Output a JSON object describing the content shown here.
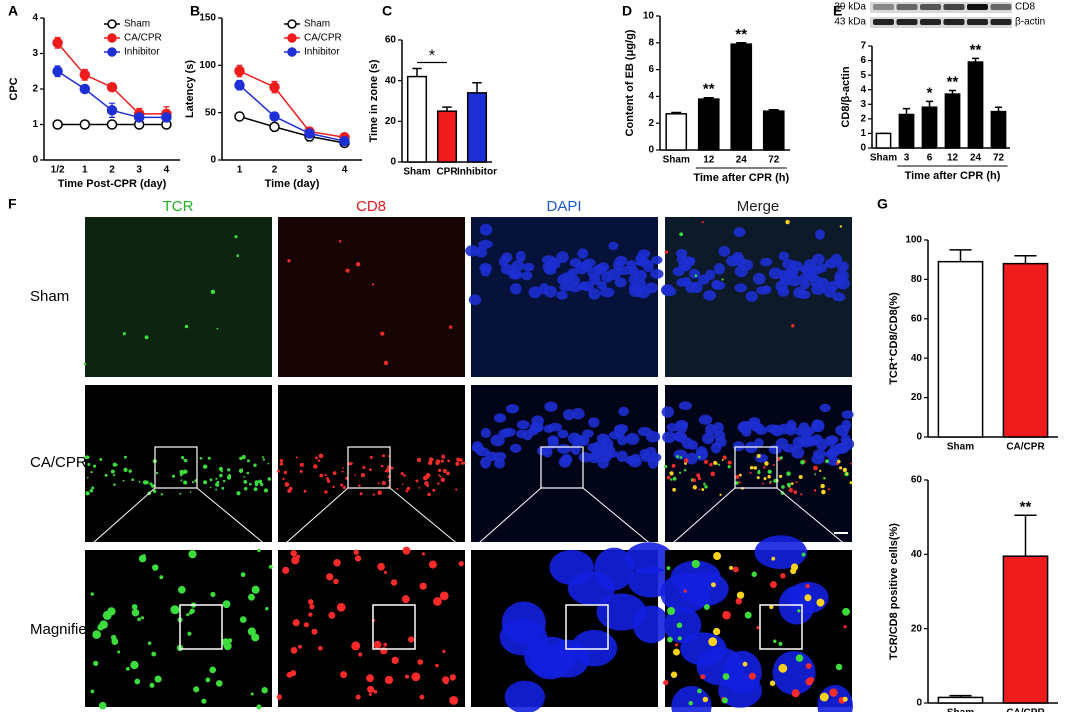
{
  "panel_labels": [
    "A",
    "B",
    "C",
    "D",
    "E",
    "F",
    "G"
  ],
  "chart_data": [
    {
      "type": "line",
      "ylabel": "CPC",
      "xlabel": "Time Post-CPR (day)",
      "categories": [
        "1/2",
        "1",
        "2",
        "3",
        "4"
      ],
      "ylim": [
        0,
        4
      ],
      "yticks": [
        0,
        1,
        2,
        3,
        4
      ],
      "series": [
        {
          "name": "Sham",
          "color": "#000000",
          "filled": false,
          "values": [
            1,
            1,
            1,
            1,
            1
          ],
          "errors": [
            0.03,
            0.03,
            0.03,
            0.03,
            0.03
          ]
        },
        {
          "name": "CA/CPR",
          "color": "#ee1c1c",
          "filled": true,
          "values": [
            3.3,
            2.4,
            2.05,
            1.3,
            1.3
          ],
          "errors": [
            0.15,
            0.15,
            0.1,
            0.15,
            0.2
          ]
        },
        {
          "name": "Inhibitor",
          "color": "#1f2fd6",
          "filled": true,
          "values": [
            2.5,
            2.0,
            1.4,
            1.2,
            1.2
          ],
          "errors": [
            0.15,
            0.05,
            0.2,
            0.1,
            0.1
          ]
        }
      ]
    },
    {
      "type": "line",
      "ylabel": "Latency (s)",
      "xlabel": "Time (day)",
      "categories": [
        "1",
        "2",
        "3",
        "4"
      ],
      "ylim": [
        0,
        150
      ],
      "yticks": [
        0,
        50,
        100,
        150
      ],
      "series": [
        {
          "name": "Sham",
          "color": "#000000",
          "filled": false,
          "values": [
            46,
            35,
            25,
            18
          ],
          "errors": [
            2,
            2,
            5,
            3
          ]
        },
        {
          "name": "CA/CPR",
          "color": "#ee1c1c",
          "filled": true,
          "values": [
            94,
            77,
            30,
            24
          ],
          "errors": [
            6,
            6,
            4,
            4
          ]
        },
        {
          "name": "Inhibitor",
          "color": "#1f2fd6",
          "filled": true,
          "values": [
            79,
            46,
            28,
            20
          ],
          "errors": [
            5,
            4,
            3,
            3
          ]
        }
      ]
    },
    {
      "type": "bar",
      "ylabel": "Time in zone (s)",
      "categories": [
        "Sham",
        "CPR",
        "Inhibitor"
      ],
      "values": [
        42,
        25,
        34
      ],
      "errors": [
        4,
        2,
        5
      ],
      "colors": [
        "#ffffff",
        "#ee1c1c",
        "#1f2fd6"
      ],
      "ylim": [
        0,
        60
      ],
      "yticks": [
        0,
        20,
        40,
        60
      ],
      "comparison_label": "*"
    },
    {
      "type": "bar",
      "ylabel": "Content of EB (μg/g)",
      "xlabel": "Time after CPR (h)",
      "categories": [
        "Sham",
        "12",
        "24",
        "72"
      ],
      "values": [
        2.7,
        3.8,
        7.9,
        2.9
      ],
      "errors": [
        0.1,
        0.1,
        0.1,
        0.1
      ],
      "colors": [
        "#ffffff",
        "#000000",
        "#000000",
        "#000000"
      ],
      "ylim": [
        0,
        10
      ],
      "yticks": [
        0,
        2,
        4,
        6,
        8,
        10
      ],
      "significance": [
        null,
        "**",
        "**",
        null
      ]
    },
    {
      "type": "bar",
      "ylabel": "CD8/β-actin",
      "xlabel": "Time after CPR (h)",
      "categories": [
        "Sham",
        "3",
        "6",
        "12",
        "24",
        "72"
      ],
      "values": [
        1.0,
        2.3,
        2.8,
        3.7,
        5.9,
        2.5
      ],
      "errors": [
        0,
        0.4,
        0.4,
        0.25,
        0.25,
        0.3
      ],
      "colors": [
        "#ffffff",
        "#000000",
        "#000000",
        "#000000",
        "#000000",
        "#000000"
      ],
      "ylim": [
        0,
        7
      ],
      "yticks": [
        0,
        1,
        2,
        3,
        4,
        5,
        6,
        7
      ],
      "significance": [
        null,
        null,
        "*",
        "**",
        "**",
        null
      ],
      "blot": {
        "sizes": [
          "39 kDa",
          "43 kDa"
        ],
        "bands": [
          "CD8",
          "β-actin"
        ]
      }
    },
    {
      "type": "bar",
      "ylabel": "TCR⁺CD8/CD8(%)",
      "categories": [
        "Sham",
        "CA/CPR"
      ],
      "values": [
        89,
        88
      ],
      "errors": [
        6,
        4
      ],
      "colors": [
        "#ffffff",
        "#ee1c1c"
      ],
      "ylim": [
        0,
        100
      ],
      "yticks": [
        0,
        20,
        40,
        60,
        80,
        100
      ]
    },
    {
      "type": "bar",
      "ylabel": "TCR/CD8 positive cells(%)",
      "categories": [
        "Sham",
        "CA/CPR"
      ],
      "values": [
        1.5,
        39.5
      ],
      "errors": [
        0.5,
        11
      ],
      "colors": [
        "#ffffff",
        "#ee1c1c"
      ],
      "ylim": [
        0,
        60
      ],
      "yticks": [
        0,
        20,
        40,
        60
      ],
      "significance": [
        null,
        "**"
      ]
    }
  ],
  "microscopy": {
    "columns": [
      "TCR",
      "CD8",
      "DAPI",
      "Merge"
    ],
    "rows": [
      "Sham",
      "CA/CPR",
      "Magnified"
    ]
  }
}
